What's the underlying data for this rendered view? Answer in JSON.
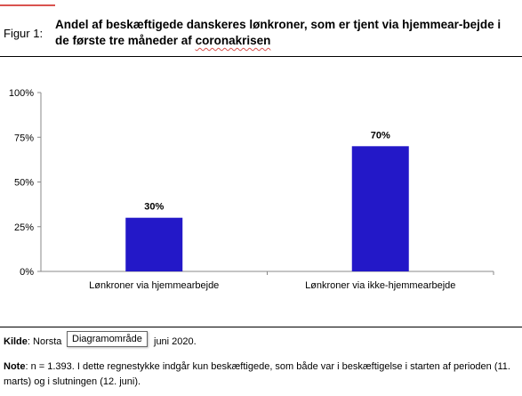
{
  "figure": {
    "label": "Figur 1:",
    "title_main": "Andel af beskæftigede danskeres lønkroner, som er tjent via hjemmear-bejde i de første tre måneder af ",
    "title_tail": "coronakrisen"
  },
  "footer": {
    "source_label": "Kilde",
    "source_prefix": ": Norsta",
    "source_suffix": "juni 2020.",
    "tooltip": "Diagramområde",
    "note_label": "Note",
    "note_text": ": n = 1.393. I dette regnestykke indgår kun beskæftigede, som både var i beskæftigelse i starten af perioden (11. marts) og i slutningen (12. juni)."
  },
  "chart_data": {
    "type": "bar",
    "categories": [
      "Lønkroner via hjemmearbejde",
      "Lønkroner via ikke-hjemmearbejde"
    ],
    "values": [
      30,
      70
    ],
    "data_labels": [
      "30%",
      "70%"
    ],
    "yticks": [
      "0%",
      "25%",
      "50%",
      "75%",
      "100%"
    ],
    "ylim": [
      0,
      100
    ],
    "bar_color": "#2318c8",
    "grid": false,
    "legend": "none"
  }
}
